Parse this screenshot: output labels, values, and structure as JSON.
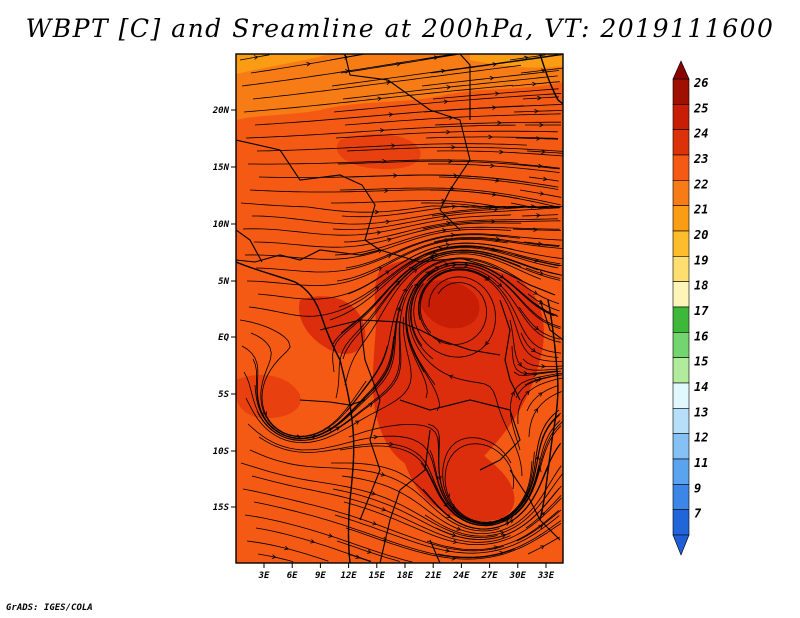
{
  "title": "WBPT [C] and Sreamline at 200hPa, VT: 2019111600",
  "footer": "GrADS: IGES/COLA",
  "map": {
    "lat_labels": [
      "20N",
      "15N",
      "10N",
      "5N",
      "EQ",
      "5S",
      "10S",
      "15S"
    ],
    "lon_labels": [
      "3E",
      "6E",
      "9E",
      "12E",
      "15E",
      "18E",
      "21E",
      "24E",
      "27E",
      "30E",
      "33E"
    ],
    "field": "wet-bulb potential temperature (C) at 200hPa, shaded; streamlines overlaid",
    "dominant_colors": {
      "band_23_24": "#f45a14",
      "band_24_25": "#dc2d0d",
      "band_22_23": "#f87c15",
      "streamline": "#000000"
    }
  },
  "colorbar": {
    "labels": [
      "26",
      "25",
      "24",
      "23",
      "22",
      "21",
      "20",
      "19",
      "18",
      "17",
      "16",
      "15",
      "14",
      "13",
      "12",
      "11",
      "9",
      "7"
    ],
    "colors": [
      "#a01000",
      "#c81e06",
      "#dc320a",
      "#f45a14",
      "#f87c15",
      "#fb9d14",
      "#fdbd2c",
      "#fdde6e",
      "#fff5b8",
      "#3db83a",
      "#72d56f",
      "#b0ec9b",
      "#e1f8ff",
      "#b6e0fa",
      "#86c1f5",
      "#5aa3ee",
      "#3b86e6",
      "#2166d8"
    ]
  }
}
